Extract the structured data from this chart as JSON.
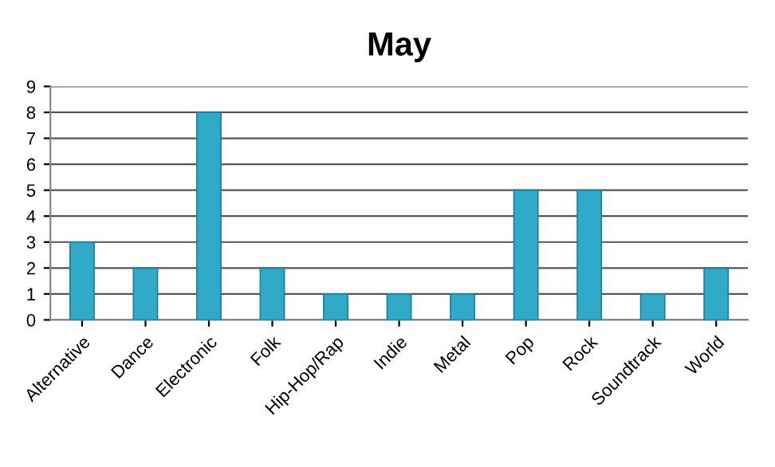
{
  "chart_data": {
    "type": "bar",
    "title": "May",
    "categories": [
      "Alternative",
      "Dance",
      "Electronic",
      "Folk",
      "Hip-Hop/Rap",
      "Indie",
      "Metal",
      "Pop",
      "Rock",
      "Soundtrack",
      "World"
    ],
    "values": [
      3,
      2,
      8,
      2,
      1,
      1,
      1,
      5,
      5,
      1,
      2
    ],
    "color": "#31a9c9",
    "ylim": [
      0,
      9
    ],
    "yticks": [
      0,
      1,
      2,
      3,
      4,
      5,
      6,
      7,
      8,
      9
    ],
    "grid": "y"
  }
}
